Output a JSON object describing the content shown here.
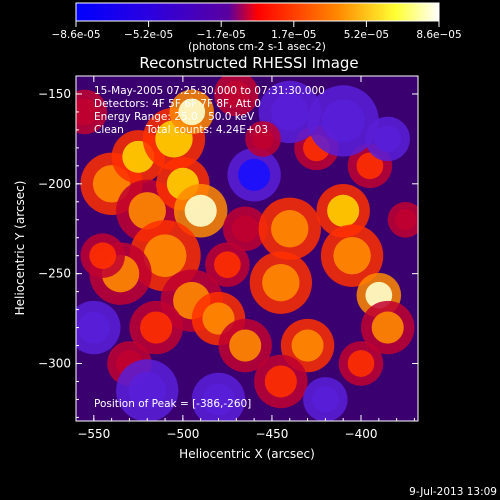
{
  "chart_data": {
    "type": "heatmap",
    "title": "Reconstructed RHESSI Image",
    "xlabel": "Heliocentric X (arcsec)",
    "ylabel": "Heliocentric Y (arcsec)",
    "xlim": [
      -560,
      -368
    ],
    "ylim": [
      -332,
      -140
    ],
    "x_ticks": [
      -550,
      -500,
      -450,
      -400
    ],
    "y_ticks": [
      -150,
      -200,
      -250,
      -300
    ],
    "colorbar": {
      "ticks": [
        "-8.6e-05",
        "-5.2e-05",
        "-1.7e-05",
        "1.7e-05",
        "5.2e-05",
        "8.6e-05"
      ],
      "range": [
        -8.6e-05,
        8.6e-05
      ],
      "unit_label": "(photons cm-2 s-1 asec-2)",
      "colormap": [
        "#000000",
        "#3a00a8",
        "#7a3cc8",
        "#ff0000",
        "#ff9900",
        "#ffff88",
        "#ffffff"
      ]
    },
    "annotations": [
      "15-May-2005 07:25:30.000 to 07:31:30.000",
      "Detectors: 4F 5F 6F 7F 8F, Att 0",
      "Energy Range: 25.0 - 50.0 keV",
      "Clean",
      "Total counts: 4.24E+03"
    ],
    "peak_label": "Position of Peak = [-386,-260]",
    "peak": [
      -386,
      -260
    ]
  },
  "footer": {
    "timestamp": "9-Jul-2013 13:09"
  }
}
